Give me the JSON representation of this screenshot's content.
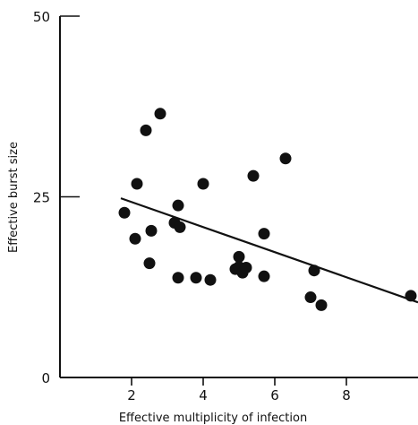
{
  "chart_data": {
    "type": "scatter",
    "title": "",
    "xlabel": "Effective multiplicity of infection",
    "ylabel": "Effective burst size",
    "xlim": [
      0,
      10
    ],
    "ylim": [
      0,
      50
    ],
    "x_ticks": [
      2,
      4,
      6,
      8
    ],
    "x_tick_labels": [
      "2",
      "4",
      "6",
      "8"
    ],
    "y_ticks": [
      0,
      25,
      50
    ],
    "y_tick_labels": [
      "0",
      "25",
      "50"
    ],
    "grid": false,
    "series": [
      {
        "x": [
          1.8,
          2.1,
          2.15,
          2.4,
          2.5,
          2.55,
          2.8,
          3.2,
          3.3,
          3.3,
          3.35,
          3.8,
          4.0,
          4.2,
          4.9,
          5.0,
          5.0,
          5.1,
          5.2,
          5.4,
          5.7,
          5.7,
          6.3,
          7.0,
          7.1,
          7.3,
          9.8
        ],
        "y": [
          22.8,
          19.2,
          26.8,
          34.2,
          15.8,
          20.3,
          36.5,
          21.4,
          23.8,
          13.8,
          20.8,
          13.8,
          26.8,
          13.5,
          15.0,
          16.7,
          15.3,
          14.5,
          15.2,
          27.9,
          19.9,
          14.0,
          30.3,
          11.1,
          14.8,
          10.0,
          11.3
        ]
      }
    ],
    "fit_line": {
      "x": [
        1.7,
        10.0
      ],
      "y": [
        24.8,
        10.4
      ]
    },
    "colors": {
      "ink": "#111111",
      "background": "#ffffff"
    }
  }
}
